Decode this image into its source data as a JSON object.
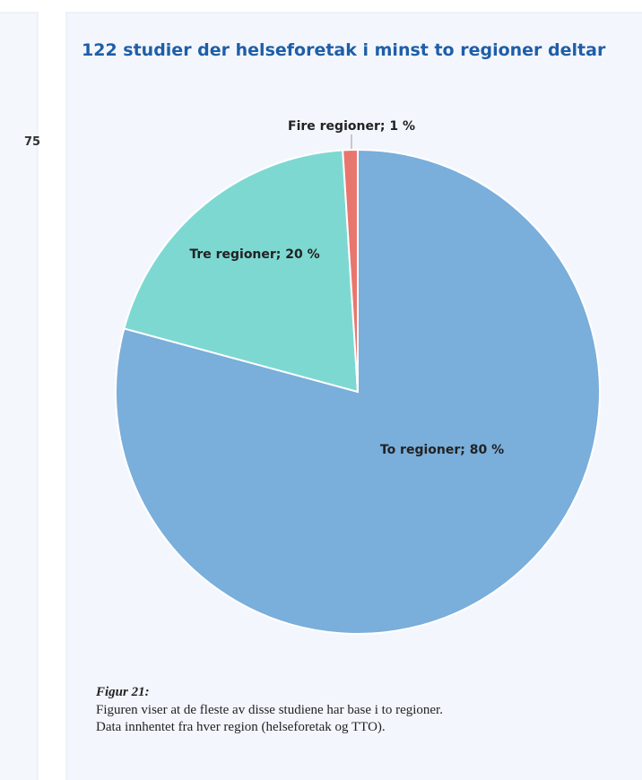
{
  "left_panel": {
    "text": "75"
  },
  "chart_data": {
    "type": "pie",
    "title": "122 studier der helseforetak i minst to regioner deltar",
    "categories": [
      "To regioner",
      "Tre regioner",
      "Fire regioner"
    ],
    "values": [
      80,
      20,
      1
    ],
    "value_labels": [
      "To regioner; 80 %",
      "Tre regioner; 20 %",
      "Fire regioner; 1 %"
    ],
    "colors": [
      "#7aaedb",
      "#7dd8d2",
      "#e8766e"
    ]
  },
  "caption": {
    "label": "Figur 21:",
    "lines": [
      "Figuren viser at de fleste av disse studiene har base i to regioner.",
      "Data innhentet fra hver region (helseforetak og TTO)."
    ]
  }
}
